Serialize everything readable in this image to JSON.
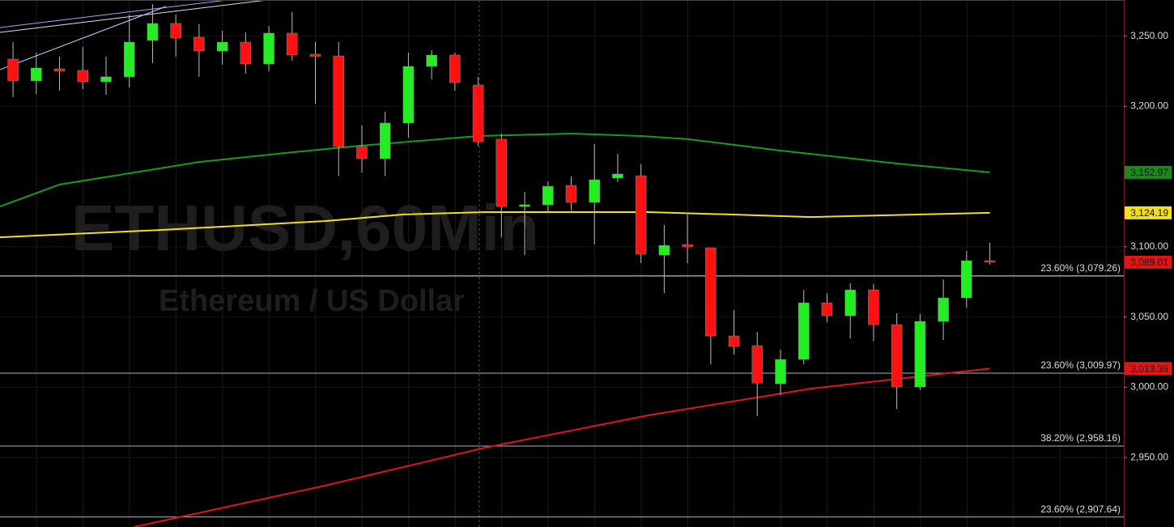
{
  "chart_data": {
    "type": "candlestick",
    "title": "ETHUSD,60Min",
    "subtitle": "Ethereum / US Dollar",
    "up_color": "#22ee22",
    "down_color": "#ff1111",
    "candles": {
      "open": [
        3233.6,
        3218.1,
        3226.7,
        3225.6,
        3217.5,
        3221.0,
        3246.9,
        3259.0,
        3249.2,
        3239.4,
        3245.7,
        3230.2,
        3252.1,
        3237.1,
        3235.9,
        3171.4,
        3162.7,
        3188.1,
        3228.4,
        3236.5,
        3215.2,
        3176.6,
        3128.7,
        3129.9,
        3143.7,
        3131.6,
        3148.9,
        3150.6,
        3094.1,
        3101.6,
        3099.3,
        3036.5,
        3029.6,
        3002.5,
        3019.8,
        3060.1,
        3050.9,
        3069.3,
        3044.6,
        3000.2,
        3046.9,
        3063.6,
        3090.1
      ],
      "high": [
        3245.7,
        3238.2,
        3235.4,
        3242.3,
        3235.4,
        3265.3,
        3272.8,
        3265.3,
        3258.4,
        3253.8,
        3252.6,
        3257.3,
        3267.1,
        3245.7,
        3245.7,
        3186.4,
        3196.2,
        3238.2,
        3240.0,
        3238.2,
        3221.0,
        3180.6,
        3139.1,
        3146.6,
        3150.0,
        3173.1,
        3166.2,
        3158.7,
        3115.5,
        3122.9,
        3099.3,
        3054.9,
        3039.4,
        3026.7,
        3069.3,
        3067.0,
        3074.0,
        3073.4,
        3052.6,
        3052.1,
        3076.8,
        3097.0,
        3102.8
      ],
      "low": [
        3206.5,
        3208.8,
        3211.1,
        3212.3,
        3208.3,
        3213.4,
        3230.7,
        3235.4,
        3221.0,
        3229.6,
        3223.2,
        3225.0,
        3232.5,
        3201.9,
        3150.6,
        3152.9,
        3150.6,
        3177.7,
        3219.2,
        3211.1,
        3172.0,
        3106.8,
        3094.1,
        3124.7,
        3125.8,
        3101.6,
        3146.0,
        3088.4,
        3067.0,
        3088.4,
        3016.3,
        3023.2,
        2979.4,
        2994.4,
        3016.3,
        3046.3,
        3034.8,
        3033.0,
        2984.6,
        2997.9,
        3033.6,
        3056.7,
        3087.4
      ],
      "close": [
        3218.1,
        3227.3,
        3225.0,
        3217.5,
        3221.0,
        3245.7,
        3259.0,
        3248.6,
        3239.4,
        3245.7,
        3230.2,
        3252.1,
        3236.5,
        3235.4,
        3171.4,
        3162.7,
        3188.1,
        3228.4,
        3236.5,
        3216.9,
        3174.8,
        3128.7,
        3129.9,
        3143.1,
        3131.6,
        3147.7,
        3151.8,
        3094.7,
        3101.0,
        3099.9,
        3036.5,
        3029.0,
        3003.0,
        3019.8,
        3060.1,
        3050.9,
        3069.3,
        3044.6,
        3000.2,
        3046.9,
        3063.6,
        3090.1,
        3089.0
      ]
    },
    "lines": [
      {
        "color": "#1a9a1a",
        "x": [
          -0.56,
          2,
          8,
          12,
          15,
          20,
          24,
          27,
          29,
          33,
          38,
          42
        ],
        "values": [
          3128.7,
          3144.3,
          3160.4,
          3167.3,
          3172.0,
          3178.9,
          3180.6,
          3178.9,
          3176.6,
          3168.5,
          3159.3,
          3152.97
        ]
      },
      {
        "color": "#f0e020",
        "x": [
          -0.56,
          6.4,
          13.4,
          16.8,
          20.3,
          27.3,
          30.8,
          34.3,
          42
        ],
        "values": [
          3106.8,
          3112.0,
          3118.3,
          3123.0,
          3124.7,
          3124.7,
          3123.0,
          3121.2,
          3124.19
        ]
      },
      {
        "color": "#e01515",
        "x": [
          5.2,
          13.4,
          20.3,
          27.3,
          34.3,
          42
        ],
        "values": [
          2900.5,
          2929.9,
          2957.0,
          2980.0,
          2999.0,
          3013.36
        ]
      }
    ],
    "levels": [
      {
        "value": 3079.26,
        "label": "23.60% (3,079.26)",
        "color": "#e8e8e8"
      },
      {
        "value": 3009.97,
        "label": "23.60% (3,009.97)",
        "color": "#a8b4c8"
      },
      {
        "value": 2958.16,
        "label": "38.20% (2,958.16)",
        "color": "#a8b4c8"
      },
      {
        "value": 2907.64,
        "label": "23.60% (2,907.64)",
        "color": "#a8b4c8"
      }
    ],
    "price_labels": [
      {
        "value": 3152.97,
        "label": "3,152.97",
        "color": "#1a8a1a"
      },
      {
        "value": 3124.19,
        "label": "3,124.19",
        "color": "#f0e020"
      },
      {
        "value": 3089.01,
        "label": "3,089.01",
        "color": "#e01515"
      },
      {
        "value": 3013.36,
        "label": "3,013.36",
        "color": "#e01515"
      }
    ],
    "xlim": [
      -0.56,
      47.76
    ],
    "ylim": [
      2900.5,
      3275.7
    ],
    "yticks": [
      {
        "value": 2950,
        "label": "2,950.00"
      },
      {
        "value": 3000,
        "label": "3,000.00"
      },
      {
        "value": 3050,
        "label": "3,050.00"
      },
      {
        "value": 3100,
        "label": "3,100.00"
      },
      {
        "value": 3200,
        "label": "3,200.00"
      },
      {
        "value": 3250,
        "label": "3,250.00"
      }
    ]
  }
}
